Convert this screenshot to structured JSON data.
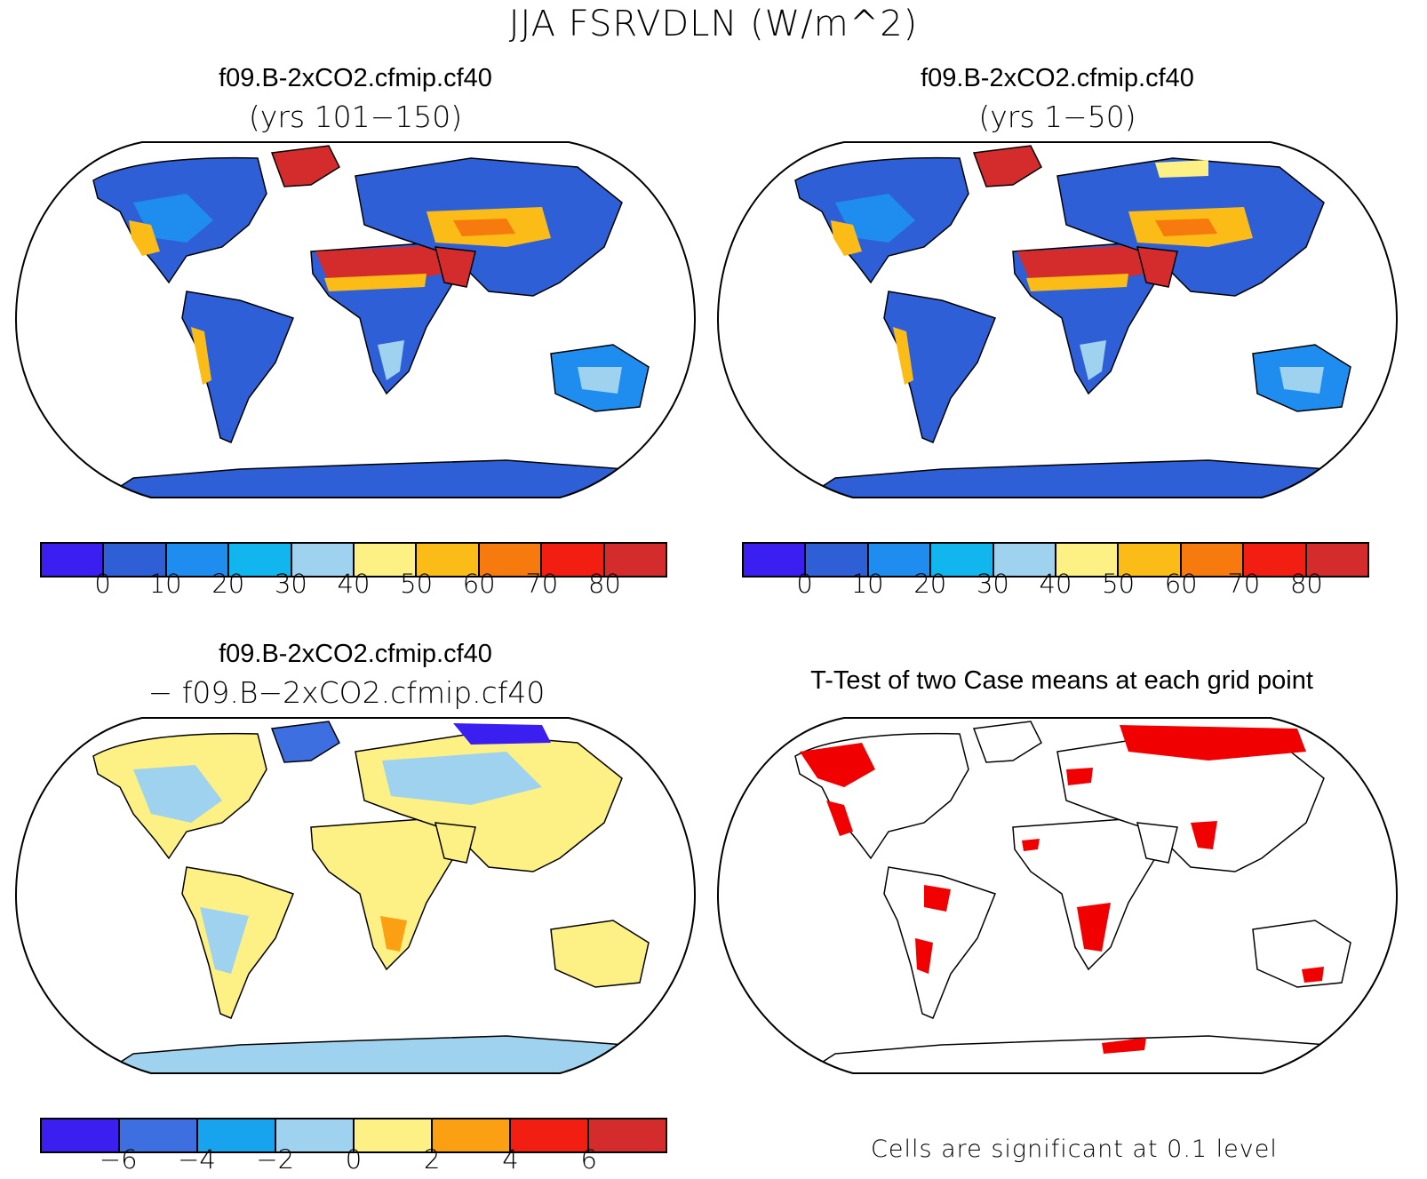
{
  "figure": {
    "title": "JJA FSRVDLN (W/m^2)"
  },
  "panels": {
    "top_left": {
      "title": "f09.B-2xCO2.cfmip.cf40",
      "subtitle": "(yrs 101−150)"
    },
    "top_right": {
      "title": "f09.B-2xCO2.cfmip.cf40",
      "subtitle": "(yrs 1−50)"
    },
    "bottom_left": {
      "title": "f09.B-2xCO2.cfmip.cf40",
      "subtitle": "− f09.B−2xCO2.cfmip.cf40"
    },
    "bottom_right": {
      "title": "T-Test of two Case means at each grid point",
      "note": "Cells are significant at 0.1 level"
    }
  },
  "colorbars": {
    "absolute": {
      "colors": [
        "#3a1ff0",
        "#2e5fd6",
        "#1f8cf0",
        "#12b6ef",
        "#9ed2ee",
        "#fdf185",
        "#fbbc18",
        "#f67a0d",
        "#f31e12",
        "#d42c2c"
      ],
      "tick_labels": [
        "0",
        "10",
        "20",
        "30",
        "40",
        "50",
        "60",
        "70",
        "80"
      ]
    },
    "difference": {
      "colors": [
        "#3a1ff0",
        "#3d6fe0",
        "#18a3ef",
        "#9ed2ee",
        "#fdf185",
        "#fba012",
        "#f31e12",
        "#d42c2c"
      ],
      "tick_labels": [
        "−6",
        "−4",
        "−2",
        "0",
        "2",
        "4",
        "6"
      ]
    }
  },
  "map_colors": {
    "ocean": "#ffffff",
    "coast": "#000000",
    "significant": "#f00000"
  }
}
